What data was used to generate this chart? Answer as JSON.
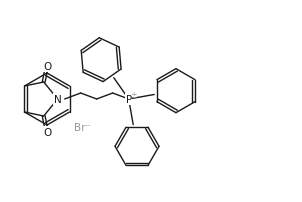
{
  "bg_color": "#ffffff",
  "line_color": "#1a1a1a",
  "line_width": 1.0,
  "text_color": "#1a1a1a",
  "figsize": [
    3.02,
    2.03
  ],
  "dpi": 100,
  "br_label": "Br⁻",
  "p_label": "P",
  "plus_label": "±",
  "n_label": "N",
  "o_label1": "O",
  "o_label2": "O",
  "font_size": 7.5,
  "font_size_small": 5.5,
  "br_color": "#999999",
  "plus_color": "#999999"
}
